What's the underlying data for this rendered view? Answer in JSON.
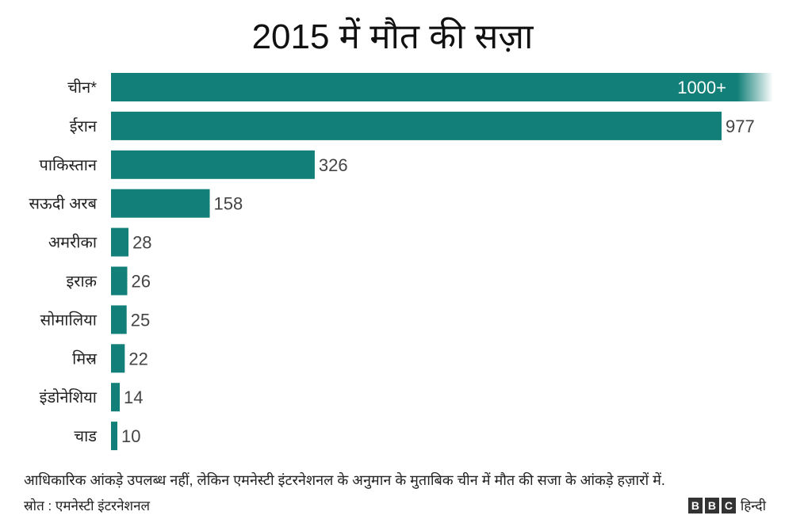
{
  "chart_data": {
    "type": "bar",
    "orientation": "horizontal",
    "title": "2015 में मौत की सज़ा",
    "categories": [
      "चीन*",
      "ईरान",
      "पाकिस्तान",
      "सऊदी अरब",
      "अमरीका",
      "इराक़",
      "सोमालिया",
      "मिस्र",
      "इंडोनेशिया",
      "चाड"
    ],
    "values": [
      1000,
      977,
      326,
      158,
      28,
      26,
      25,
      22,
      14,
      10
    ],
    "data_labels": [
      "1000+",
      "977",
      "326",
      "158",
      "28",
      "26",
      "25",
      "22",
      "14",
      "10"
    ],
    "bar_color": "#127f78",
    "xlim": [
      0,
      977
    ],
    "grid": false,
    "note": "आधिकारिक आंकड़े उपलब्ध नहीं, लेकिन एमनेस्टी इंटरनेशनल के अनुमान के मुताबिक चीन में मौत की सजा के आंकड़े हज़ारों में.",
    "source": "स्रोत : एमनेस्टी इंटरनेशनल"
  },
  "logo": {
    "letters": [
      "B",
      "B",
      "C"
    ],
    "text": "हिन्दी"
  }
}
